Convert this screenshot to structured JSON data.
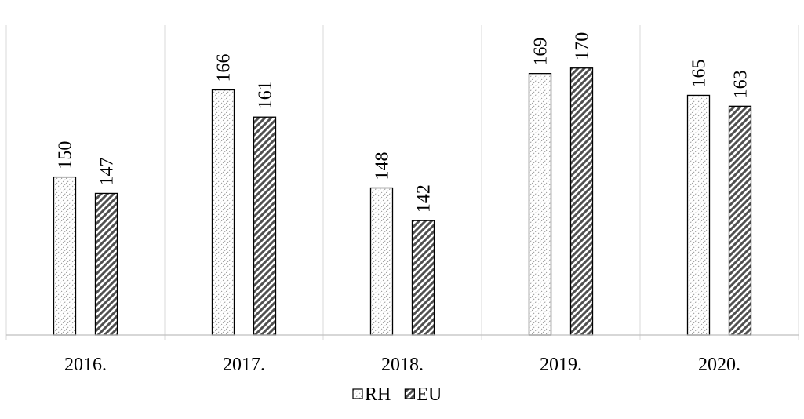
{
  "chart_data": {
    "type": "bar",
    "categories": [
      "2016.",
      "2017.",
      "2018.",
      "2019.",
      "2020."
    ],
    "series": [
      {
        "name": "RH",
        "values": [
          150,
          166,
          148,
          169,
          165
        ],
        "pattern": "dotted-hatch",
        "color": "#8c8c8c"
      },
      {
        "name": "EU",
        "values": [
          147,
          161,
          142,
          170,
          163
        ],
        "pattern": "diagonal-hatch",
        "color": "#555555"
      }
    ],
    "ylim": [
      121,
      175
    ],
    "grid": "vertical-category-separators",
    "legend_position": "bottom",
    "data_labels": "vertical-above-bars"
  }
}
